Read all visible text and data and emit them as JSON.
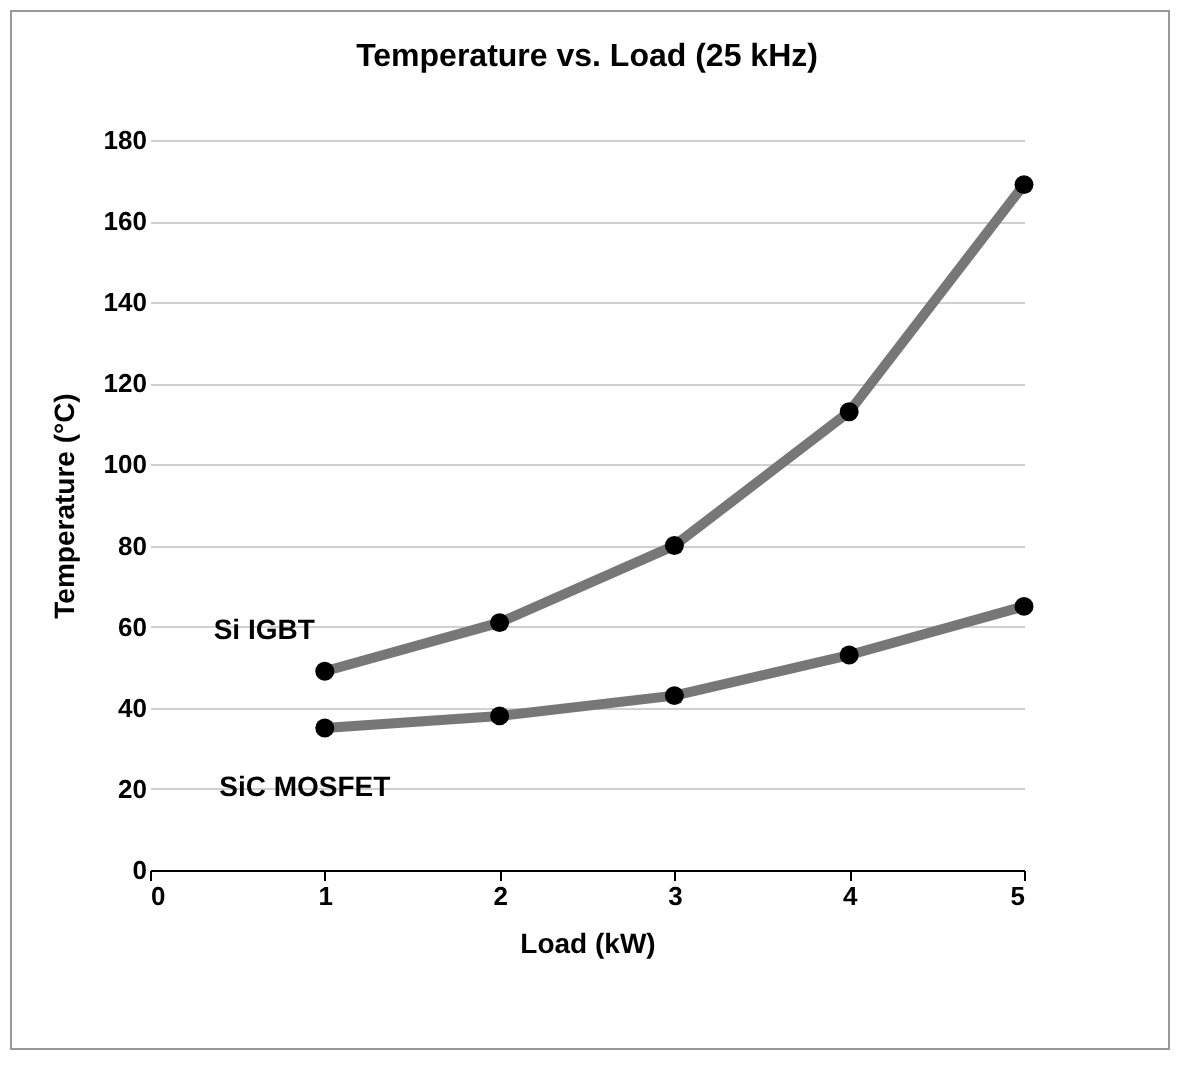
{
  "chart_data": {
    "type": "line",
    "title": "Temperature vs. Load (25 kHz)",
    "xlabel": "Load (kW)",
    "ylabel": "Temperature (°C)",
    "x": [
      1,
      2,
      3,
      4,
      5
    ],
    "series": [
      {
        "name": "Si IGBT",
        "color": "#777777",
        "values": [
          49,
          61,
          80,
          113,
          169
        ]
      },
      {
        "name": "SiC MOSFET",
        "color": "#777777",
        "values": [
          35,
          38,
          43,
          53,
          65
        ]
      }
    ],
    "xlim": [
      0,
      5
    ],
    "xticks": [
      0,
      1,
      2,
      3,
      4,
      5
    ],
    "ylim": [
      0,
      180
    ],
    "yticks": [
      0,
      20,
      40,
      60,
      80,
      100,
      120,
      140,
      160,
      180
    ],
    "grid": "y",
    "legend": false,
    "marker": "circle",
    "line_style": "solid"
  }
}
